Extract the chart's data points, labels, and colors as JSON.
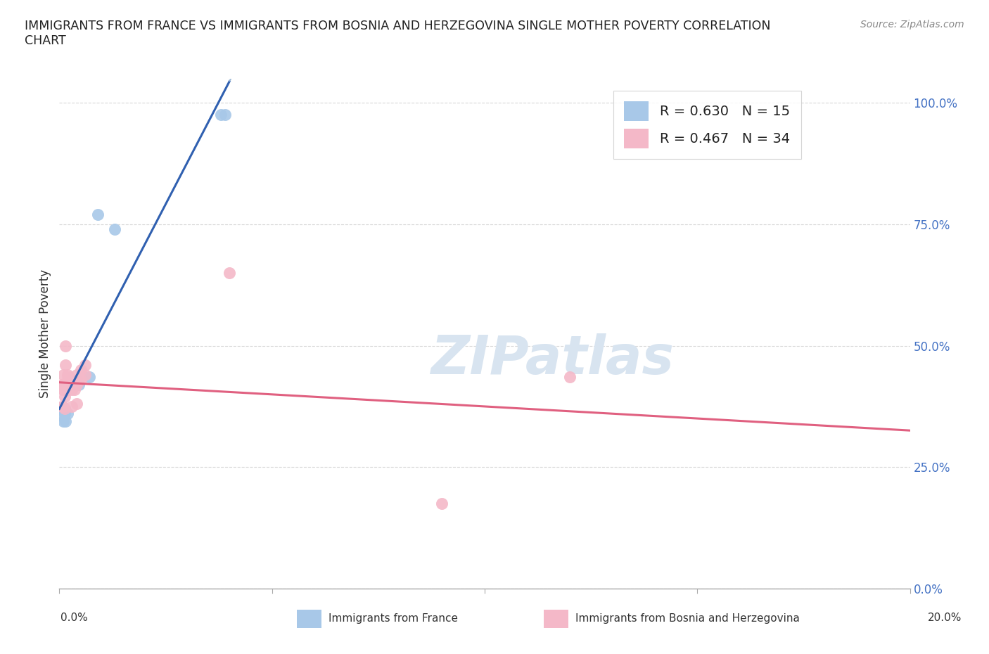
{
  "title": "IMMIGRANTS FROM FRANCE VS IMMIGRANTS FROM BOSNIA AND HERZEGOVINA SINGLE MOTHER POVERTY CORRELATION\nCHART",
  "source": "Source: ZipAtlas.com",
  "ylabel": "Single Mother Poverty",
  "xlabel_france": "Immigrants from France",
  "xlabel_bosnia": "Immigrants from Bosnia and Herzegovina",
  "france_R": 0.63,
  "france_N": 15,
  "bosnia_R": 0.467,
  "bosnia_N": 34,
  "france_color": "#a8c8e8",
  "bosnia_color": "#f4b8c8",
  "france_line_color": "#3060b0",
  "bosnia_line_color": "#e06080",
  "france_dashed_color": "#a0bcd8",
  "watermark_color": "#d0dce8",
  "background_color": "#ffffff",
  "grid_color": "#d8d8d8",
  "xlim": [
    0.0,
    0.2
  ],
  "ylim": [
    0.0,
    1.05
  ],
  "france_points": [
    [
      0.0008,
      0.375
    ],
    [
      0.0008,
      0.355
    ],
    [
      0.001,
      0.345
    ],
    [
      0.0012,
      0.36
    ],
    [
      0.0013,
      0.37
    ],
    [
      0.0015,
      0.345
    ],
    [
      0.002,
      0.36
    ],
    [
      0.003,
      0.42
    ],
    [
      0.004,
      0.43
    ],
    [
      0.0045,
      0.42
    ],
    [
      0.007,
      0.435
    ],
    [
      0.009,
      0.77
    ],
    [
      0.013,
      0.74
    ],
    [
      0.038,
      0.975
    ],
    [
      0.039,
      0.975
    ]
  ],
  "bosnia_points": [
    [
      0.0006,
      0.42
    ],
    [
      0.0007,
      0.41
    ],
    [
      0.0007,
      0.375
    ],
    [
      0.0008,
      0.375
    ],
    [
      0.0008,
      0.375
    ],
    [
      0.001,
      0.44
    ],
    [
      0.001,
      0.42
    ],
    [
      0.001,
      0.41
    ],
    [
      0.0012,
      0.395
    ],
    [
      0.0012,
      0.37
    ],
    [
      0.0015,
      0.5
    ],
    [
      0.0015,
      0.46
    ],
    [
      0.002,
      0.44
    ],
    [
      0.002,
      0.43
    ],
    [
      0.002,
      0.41
    ],
    [
      0.0022,
      0.43
    ],
    [
      0.0022,
      0.41
    ],
    [
      0.0025,
      0.435
    ],
    [
      0.003,
      0.43
    ],
    [
      0.003,
      0.41
    ],
    [
      0.003,
      0.375
    ],
    [
      0.0035,
      0.43
    ],
    [
      0.0035,
      0.41
    ],
    [
      0.004,
      0.44
    ],
    [
      0.004,
      0.42
    ],
    [
      0.004,
      0.38
    ],
    [
      0.0045,
      0.43
    ],
    [
      0.005,
      0.45
    ],
    [
      0.005,
      0.43
    ],
    [
      0.006,
      0.46
    ],
    [
      0.006,
      0.44
    ],
    [
      0.04,
      0.65
    ],
    [
      0.09,
      0.175
    ],
    [
      0.12,
      0.435
    ]
  ],
  "yticks": [
    0.0,
    0.25,
    0.5,
    0.75,
    1.0
  ],
  "ytick_labels": [
    "0.0%",
    "25.0%",
    "50.0%",
    "75.0%",
    "100.0%"
  ],
  "xtick_positions": [
    0.0,
    0.2
  ],
  "xtick_labels": [
    "0.0%",
    "20.0%"
  ]
}
